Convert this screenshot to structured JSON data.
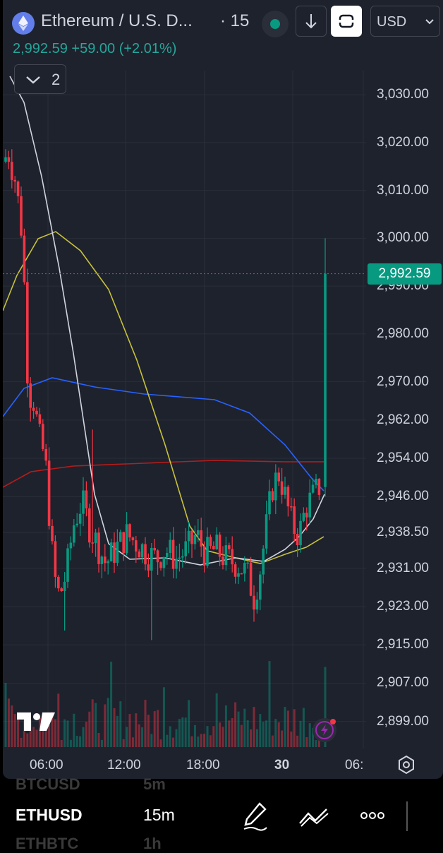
{
  "header": {
    "title": "Ethereum / U.S. D...",
    "separator": "·",
    "interval": "15",
    "currency": "USD"
  },
  "price_line": {
    "last": "2,992.59",
    "change": "+59.00",
    "change_pct": "(+2.01%)"
  },
  "indicators": {
    "count": "2"
  },
  "y_axis": [
    "3,030.00",
    "3,020.00",
    "3,010.00",
    "3,000.00",
    "2,990.00",
    "2,980.00",
    "2,970.00",
    "2,962.00",
    "2,954.00",
    "2,946.00",
    "2,938.50",
    "2,931.00",
    "2,923.00",
    "2,915.00",
    "2,907.00",
    "2,899.00"
  ],
  "x_axis": [
    "06:00",
    "12:00",
    "18:00",
    "30",
    "06:"
  ],
  "current_price_tag": "2,992.59",
  "colors": {
    "up": "#089981",
    "down": "#f23645",
    "ma_white": "#d1d4dc",
    "ma_yellow": "#c8c23a",
    "ma_blue": "#2962ff",
    "ma_red": "#b71c1c"
  },
  "bottom_bar": {
    "ghost_top_symbol": "BTCUSD",
    "ghost_top_tf": "5m",
    "symbol": "ETHUSD",
    "timeframe": "15m",
    "ghost_bottom_symbol": "ETHBTC",
    "ghost_bottom_tf": "1h",
    "tools": [
      "pen-icon",
      "trend-tools-icon",
      "more-icon"
    ]
  },
  "chart_data": {
    "type": "candlestick",
    "title": "Ethereum / U.S. Dollar · 15",
    "x_ticks": [
      "06:00",
      "12:00",
      "18:00",
      "30",
      "06:"
    ],
    "ylim": [
      2896,
      3034
    ],
    "last_price": 2992.59,
    "key_points": [
      {
        "x": "start",
        "close": 3018
      },
      {
        "x": "~04:30",
        "low": 2962
      },
      {
        "x": "~07:30",
        "low": 2918
      },
      {
        "x": "~13:00",
        "low": 2927
      },
      {
        "x": "~20:00",
        "close": 2935
      },
      {
        "x": "~23:30",
        "low": 2921
      },
      {
        "x": "~01:00",
        "high": 2953
      },
      {
        "x": "last",
        "high": 3000,
        "close": 2992.59
      }
    ]
  }
}
